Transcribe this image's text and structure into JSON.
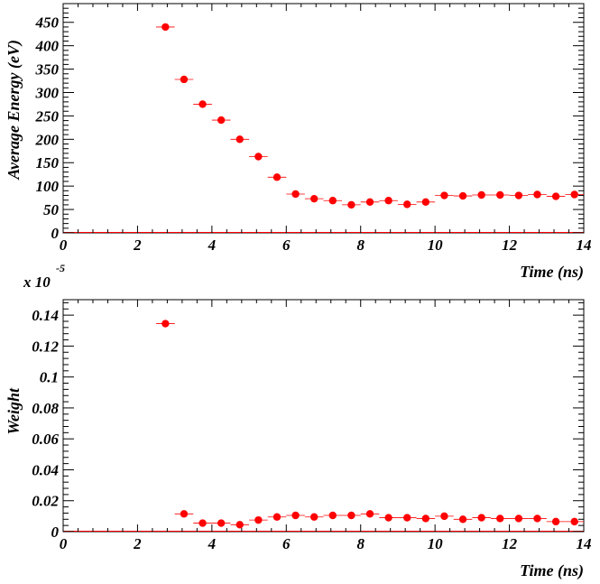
{
  "colors": {
    "marker": "#ff0000",
    "frame": "#000000",
    "error_bar": "#ff0000"
  },
  "chart_data": [
    {
      "type": "scatter",
      "title": "",
      "xlabel": "Time (ns)",
      "ylabel": "Average Energy (eV)",
      "xlim": [
        0,
        14
      ],
      "ylim": [
        0,
        490
      ],
      "xticks": [
        "0",
        "2",
        "4",
        "6",
        "8",
        "10",
        "12",
        "14"
      ],
      "yticks": [
        "0",
        "50",
        "100",
        "150",
        "200",
        "250",
        "300",
        "350",
        "400",
        "450"
      ],
      "grid": false,
      "x_error": 0.25,
      "series": [
        {
          "x": [
            2.75,
            3.25,
            3.75,
            4.25,
            4.75,
            5.25,
            5.75,
            6.25,
            6.75,
            7.25,
            7.75,
            8.25,
            8.75,
            9.25,
            9.75,
            10.25,
            10.75,
            11.25,
            11.75,
            12.25,
            12.75,
            13.25,
            13.75
          ],
          "y": [
            440,
            328,
            275,
            241,
            200,
            163,
            119,
            83,
            73,
            69,
            60,
            66,
            69,
            61,
            66,
            80,
            79,
            81,
            81,
            80,
            82,
            78,
            82
          ]
        }
      ]
    },
    {
      "type": "scatter",
      "title": "",
      "xlabel": "Time (ns)",
      "ylabel": "Weight",
      "multiplier": "x 10",
      "multiplier_exponent": "-5",
      "xlim": [
        0,
        14
      ],
      "ylim": [
        0,
        0.15
      ],
      "xticks": [
        "0",
        "2",
        "4",
        "6",
        "8",
        "10",
        "12",
        "14"
      ],
      "yticks": [
        "0",
        "0.02",
        "0.04",
        "0.06",
        "0.08",
        "0.1",
        "0.12",
        "0.14"
      ],
      "grid": false,
      "x_error": 0.25,
      "series": [
        {
          "x": [
            2.75,
            3.25,
            3.75,
            4.25,
            4.75,
            5.25,
            5.75,
            6.25,
            6.75,
            7.25,
            7.75,
            8.25,
            8.75,
            9.25,
            9.75,
            10.25,
            10.75,
            11.25,
            11.75,
            12.25,
            12.75,
            13.25,
            13.75
          ],
          "y": [
            0.1345,
            0.0115,
            0.0055,
            0.0055,
            0.0045,
            0.0075,
            0.0095,
            0.0105,
            0.0095,
            0.0105,
            0.0105,
            0.0115,
            0.009,
            0.009,
            0.0085,
            0.01,
            0.008,
            0.009,
            0.0085,
            0.0085,
            0.0085,
            0.0065,
            0.0065
          ]
        }
      ]
    }
  ]
}
